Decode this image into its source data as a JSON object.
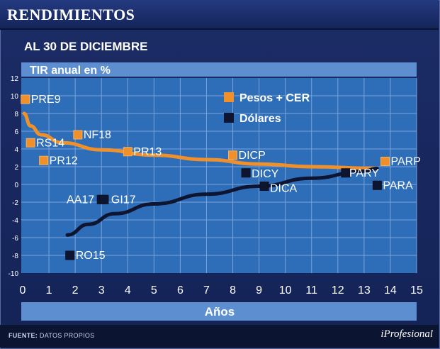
{
  "header": {
    "title": "RENDIMIENTOS"
  },
  "subtitle": "AL 30 DE DICIEMBRE",
  "footer": {
    "source_label": "FUENTE:",
    "source_text": "DATOS PROPIOS",
    "brand": "iProfesional"
  },
  "colors": {
    "pesos": "#f0902a",
    "dolares": "#0e1530",
    "plot_bg": "#2e6db8",
    "band": "#5d8fd0"
  },
  "chart_data": {
    "type": "scatter",
    "ylabel": "TIR anual en %",
    "xlabel": "Años",
    "xlim": [
      0,
      15
    ],
    "ylim": [
      -10,
      12
    ],
    "xticks": [
      "0",
      "1",
      "2",
      "3",
      "4",
      "5",
      "6",
      "7",
      "8",
      "9",
      "10",
      "11",
      "12",
      "13",
      "14",
      "15"
    ],
    "yticks": [
      "12",
      "10",
      "8",
      "6",
      "4",
      "2",
      "0",
      "-2",
      "-4",
      "-6",
      "-8",
      "-10"
    ],
    "grid": true,
    "legend_position": "top-right",
    "series": [
      {
        "name": "Pesos + CER",
        "color": "#f0902a",
        "points": [
          {
            "label": "PRE9",
            "x": 0.1,
            "y": 9.6
          },
          {
            "label": "RS14",
            "x": 0.3,
            "y": 4.7
          },
          {
            "label": "PR12",
            "x": 0.8,
            "y": 2.7
          },
          {
            "label": "NF18",
            "x": 2.1,
            "y": 5.6
          },
          {
            "label": "PR13",
            "x": 4.0,
            "y": 3.7
          },
          {
            "label": "DICP",
            "x": 8.0,
            "y": 3.3
          },
          {
            "label": "PARP",
            "x": 13.8,
            "y": 2.6
          }
        ],
        "trend": [
          {
            "x": 0.05,
            "y": 8.0
          },
          {
            "x": 0.3,
            "y": 6.6
          },
          {
            "x": 0.7,
            "y": 5.6
          },
          {
            "x": 1.5,
            "y": 4.7
          },
          {
            "x": 3,
            "y": 3.9
          },
          {
            "x": 5,
            "y": 3.3
          },
          {
            "x": 7,
            "y": 2.8
          },
          {
            "x": 9,
            "y": 2.3
          },
          {
            "x": 11,
            "y": 2.0
          },
          {
            "x": 13.5,
            "y": 1.8
          }
        ]
      },
      {
        "name": "Dólares",
        "color": "#0e1530",
        "points": [
          {
            "label": "AA17",
            "x": 3.0,
            "y": -1.7
          },
          {
            "label": "GI17",
            "x": 3.1,
            "y": -1.7
          },
          {
            "label": "RO15",
            "x": 1.8,
            "y": -8.0
          },
          {
            "label": "DICY",
            "x": 8.5,
            "y": 1.3
          },
          {
            "label": "DICA",
            "x": 9.2,
            "y": -0.2
          },
          {
            "label": "PARY",
            "x": 12.3,
            "y": 1.3
          },
          {
            "label": "PARA",
            "x": 13.5,
            "y": -0.1
          }
        ],
        "trend": [
          {
            "x": 1.7,
            "y": -5.7
          },
          {
            "x": 2.5,
            "y": -4.5
          },
          {
            "x": 3.5,
            "y": -3.3
          },
          {
            "x": 5,
            "y": -2.2
          },
          {
            "x": 7,
            "y": -1.1
          },
          {
            "x": 9,
            "y": -0.2
          },
          {
            "x": 11,
            "y": 0.7
          },
          {
            "x": 13,
            "y": 1.5
          },
          {
            "x": 13.5,
            "y": 1.8
          }
        ]
      }
    ]
  }
}
